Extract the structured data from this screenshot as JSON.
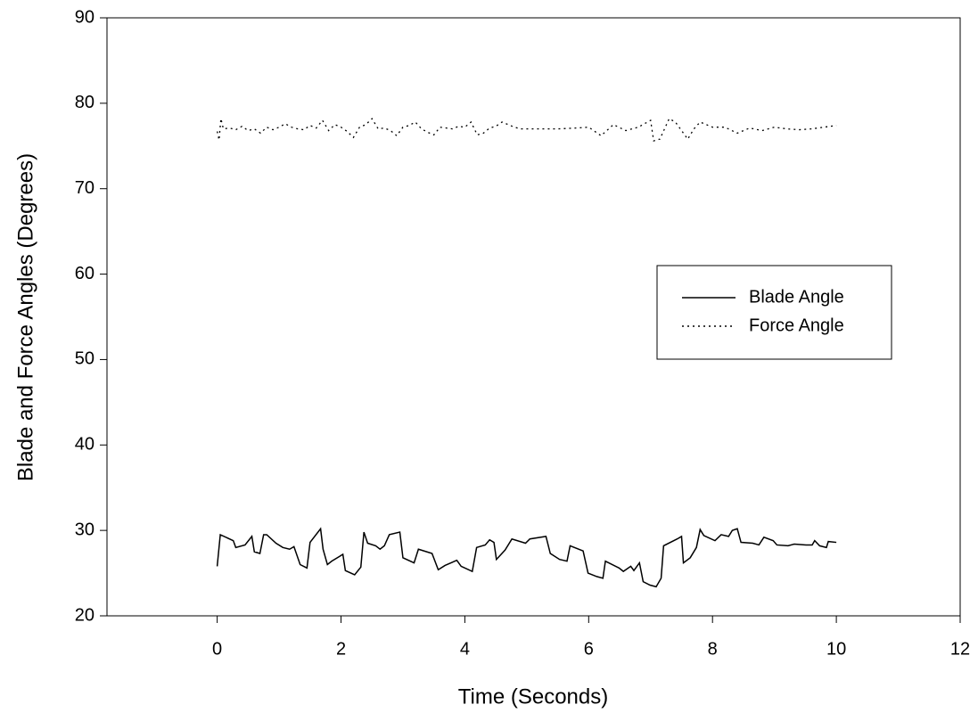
{
  "chart_data": {
    "type": "line",
    "xlabel": "Time (Seconds)",
    "ylabel": "Blade and Force Angles (Degrees)",
    "xlim": [
      -1.78,
      12
    ],
    "ylim": [
      20,
      90
    ],
    "xticks": [
      0,
      2,
      4,
      6,
      8,
      10,
      12
    ],
    "yticks": [
      20,
      30,
      40,
      50,
      60,
      70,
      80,
      90
    ],
    "legend": "right",
    "grid": false,
    "series": [
      {
        "name": "Blade Angle",
        "color": "#000000",
        "style": "solid",
        "x": [
          0,
          0.05,
          0.26,
          0.3,
          0.45,
          0.56,
          0.6,
          0.69,
          0.75,
          0.8,
          0.95,
          1.06,
          1.17,
          1.24,
          1.34,
          1.45,
          1.5,
          1.67,
          1.71,
          1.78,
          1.85,
          2.03,
          2.07,
          2.22,
          2.32,
          2.37,
          2.43,
          2.56,
          2.63,
          2.7,
          2.78,
          2.95,
          3.0,
          3.18,
          3.25,
          3.47,
          3.57,
          3.68,
          3.87,
          3.94,
          4.12,
          4.19,
          4.33,
          4.4,
          4.47,
          4.51,
          4.65,
          4.76,
          4.98,
          5.05,
          5.31,
          5.38,
          5.53,
          5.65,
          5.7,
          5.91,
          5.99,
          6.13,
          6.23,
          6.27,
          6.49,
          6.56,
          6.68,
          6.73,
          6.82,
          6.88,
          6.99,
          7.09,
          7.17,
          7.21,
          7.43,
          7.5,
          7.53,
          7.64,
          7.74,
          7.8,
          7.86,
          8.04,
          8.14,
          8.26,
          8.32,
          8.4,
          8.46,
          8.65,
          8.75,
          8.83,
          8.98,
          9.04,
          9.22,
          9.32,
          9.51,
          9.61,
          9.65,
          9.73,
          9.84,
          9.87,
          10.0
        ],
        "values": [
          25.8,
          29.5,
          28.8,
          28,
          28.3,
          29.3,
          27.5,
          27.3,
          29.5,
          29.5,
          28.5,
          28,
          27.8,
          28.1,
          26,
          25.6,
          28.6,
          30.2,
          27.8,
          26,
          26.4,
          27.2,
          25.3,
          24.8,
          25.7,
          29.8,
          28.5,
          28.2,
          27.8,
          28.2,
          29.5,
          29.8,
          26.8,
          26.2,
          27.8,
          27.3,
          25.4,
          25.9,
          26.5,
          25.8,
          25.2,
          28,
          28.3,
          28.9,
          28.6,
          26.6,
          27.7,
          29,
          28.5,
          29,
          29.3,
          27.3,
          26.6,
          26.4,
          28.2,
          27.6,
          25,
          24.6,
          24.4,
          26.4,
          25.6,
          25.2,
          25.8,
          25.3,
          26.2,
          24,
          23.6,
          23.4,
          24.4,
          28.2,
          29,
          29.3,
          26.2,
          26.8,
          28,
          30.1,
          29.4,
          28.8,
          29.5,
          29.3,
          30,
          30.2,
          28.6,
          28.5,
          28.3,
          29.2,
          28.8,
          28.3,
          28.2,
          28.4,
          28.3,
          28.3,
          28.8,
          28.2,
          28,
          28.7,
          28.6
        ]
      },
      {
        "name": "Force Angle",
        "color": "#000000",
        "style": "dotted",
        "x": [
          0,
          0.03,
          0.06,
          0.1,
          0.2,
          0.3,
          0.4,
          0.5,
          0.6,
          0.7,
          0.8,
          0.9,
          1.0,
          1.1,
          1.2,
          1.3,
          1.4,
          1.5,
          1.6,
          1.7,
          1.8,
          1.9,
          2.0,
          2.1,
          2.2,
          2.3,
          2.4,
          2.5,
          2.6,
          2.7,
          2.8,
          2.9,
          3.0,
          3.1,
          3.2,
          3.3,
          3.4,
          3.5,
          3.6,
          3.7,
          3.8,
          3.9,
          4.0,
          4.1,
          4.2,
          4.3,
          4.4,
          4.5,
          4.6,
          4.7,
          4.8,
          4.9,
          5.2,
          5.5,
          5.8,
          6.0,
          6.2,
          6.4,
          6.6,
          6.8,
          7.0,
          7.05,
          7.15,
          7.3,
          7.4,
          7.5,
          7.6,
          7.7,
          7.8,
          7.9,
          8.0,
          8.2,
          8.4,
          8.6,
          8.8,
          9.0,
          9.2,
          9.4,
          9.6,
          9.8,
          10.0
        ],
        "values": [
          76.7,
          75.7,
          78.2,
          77,
          77.1,
          76.9,
          77.3,
          76.8,
          77,
          76.5,
          77.2,
          76.9,
          77.2,
          77.6,
          77.2,
          77,
          76.9,
          77.4,
          77.1,
          78,
          76.8,
          77.5,
          77.2,
          76.7,
          76,
          77.2,
          77.5,
          78.2,
          77,
          77.1,
          76.8,
          76.2,
          77.2,
          77.4,
          77.8,
          77,
          76.6,
          76.3,
          77.2,
          77.1,
          77,
          77.3,
          77.2,
          77.8,
          76.3,
          76.5,
          77.1,
          77.3,
          77.8,
          77.5,
          77.2,
          77,
          77,
          77,
          77.1,
          77.2,
          76.2,
          77.5,
          76.8,
          77.2,
          78,
          75.6,
          75.8,
          78.2,
          77.8,
          76.8,
          75.8,
          77,
          77.8,
          77.5,
          77.2,
          77.2,
          76.5,
          77.1,
          76.8,
          77.2,
          77,
          76.9,
          77,
          77.2,
          77.4
        ]
      }
    ]
  }
}
